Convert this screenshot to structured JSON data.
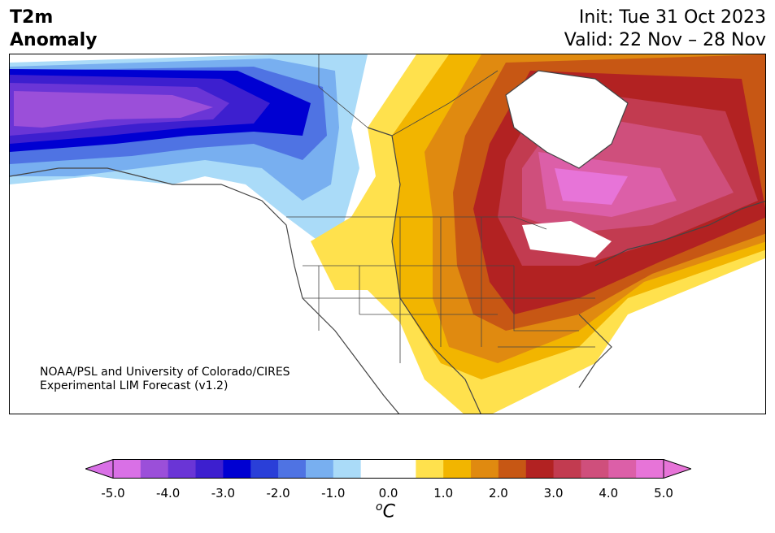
{
  "header": {
    "title_line1": "T2m",
    "title_line2": "Anomaly",
    "init": "Init: Tue 31 Oct 2023",
    "valid": "Valid: 22 Nov – 28 Nov"
  },
  "credit": {
    "line1": "NOAA/PSL and University of Colorado/CIRES",
    "line2": "Experimental LIM Forecast (v1.2)"
  },
  "colorbar": {
    "unit_prefix": "o",
    "unit_main": "C",
    "ticks": [
      "-5.0",
      "-4.0",
      "-3.0",
      "-2.0",
      "-1.0",
      "0.0",
      "1.0",
      "2.0",
      "3.0",
      "4.0",
      "5.0"
    ],
    "colors": [
      "#d970e6",
      "#9b4fd9",
      "#6a35d6",
      "#3d1fcf",
      "#0000d2",
      "#2a3fd8",
      "#4f73e3",
      "#78aff0",
      "#aadbf8",
      "#ffffff",
      "#ffffff",
      "#ffe14d",
      "#f2b500",
      "#e08a10",
      "#c75714",
      "#b22222",
      "#c23b50",
      "#cf4f7c",
      "#dc5fa8",
      "#e774d8"
    ],
    "under_color": "#d970e6",
    "over_color": "#e774d8"
  }
}
